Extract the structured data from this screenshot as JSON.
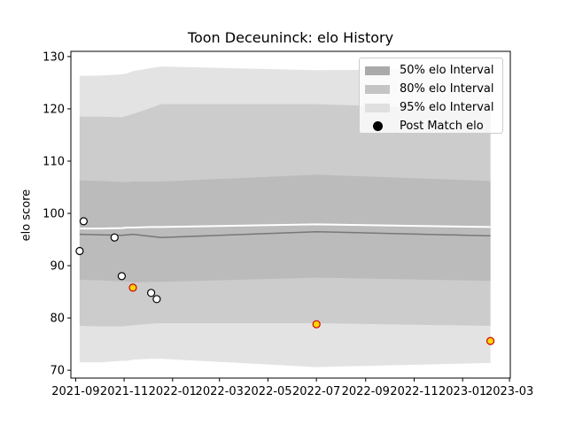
{
  "chart_data": {
    "type": "line",
    "title": "Toon Deceuninck: elo History",
    "xlabel": "",
    "ylabel": "elo score",
    "ylim": [
      68.5,
      131
    ],
    "xlim": [
      "2021-08-26",
      "2023-03-02"
    ],
    "x_ticks": [
      "2021-09",
      "2021-11",
      "2022-01",
      "2022-03",
      "2022-05",
      "2022-07",
      "2022-09",
      "2022-11",
      "2023-01",
      "2023-03"
    ],
    "y_ticks": [
      70,
      80,
      90,
      100,
      110,
      120,
      130
    ],
    "legend": {
      "placement": "top-right",
      "items": [
        {
          "label": "50% elo Interval",
          "kind": "band"
        },
        {
          "label": "80% elo Interval",
          "kind": "band"
        },
        {
          "label": "95% elo Interval",
          "kind": "band"
        },
        {
          "label": "Post Match elo",
          "kind": "marker"
        }
      ]
    },
    "band_dates": [
      "2021-09-06",
      "2021-10-03",
      "2021-10-29",
      "2021-11-05",
      "2021-11-12",
      "2021-12-05",
      "2021-12-18",
      "2022-07-01",
      "2023-02-05"
    ],
    "mean": [
      97.1,
      97.1,
      97.2,
      97.3,
      97.3,
      97.4,
      97.4,
      97.9,
      97.4
    ],
    "median": [
      96.0,
      95.9,
      95.8,
      95.9,
      96.0,
      95.6,
      95.4,
      96.5,
      95.7
    ],
    "bands": [
      {
        "name": "95% elo Interval",
        "color": "#e3e3e3",
        "lower": [
          71.5,
          71.5,
          71.8,
          71.8,
          72.0,
          72.2,
          72.2,
          70.6,
          71.4
        ],
        "upper": [
          126.3,
          126.4,
          126.6,
          126.8,
          127.2,
          127.8,
          128.1,
          127.4,
          127.7
        ]
      },
      {
        "name": "80% elo Interval",
        "color": "#cccccc",
        "lower": [
          78.5,
          78.4,
          78.4,
          78.5,
          78.6,
          78.9,
          79.0,
          79.0,
          78.5
        ],
        "upper": [
          118.5,
          118.5,
          118.4,
          118.7,
          119.0,
          120.2,
          120.9,
          120.9,
          119.8
        ]
      },
      {
        "name": "50% elo Interval",
        "color": "#bbbbbb",
        "lower": [
          87.3,
          87.2,
          87.0,
          87.0,
          86.8,
          86.9,
          86.9,
          87.7,
          87.1
        ],
        "upper": [
          106.3,
          106.2,
          106.0,
          106.0,
          106.1,
          106.1,
          106.1,
          107.4,
          106.2
        ]
      }
    ],
    "post_match_elo": [
      {
        "date": "2021-09-06",
        "elo": 92.8,
        "highlight": false
      },
      {
        "date": "2021-09-11",
        "elo": 98.5,
        "highlight": false
      },
      {
        "date": "2021-10-20",
        "elo": 95.4,
        "highlight": false
      },
      {
        "date": "2021-10-29",
        "elo": 88.0,
        "highlight": false
      },
      {
        "date": "2021-11-12",
        "elo": 85.8,
        "highlight": true
      },
      {
        "date": "2021-12-05",
        "elo": 84.8,
        "highlight": false
      },
      {
        "date": "2021-12-12",
        "elo": 83.6,
        "highlight": false
      },
      {
        "date": "2022-07-01",
        "elo": 78.8,
        "highlight": true
      },
      {
        "date": "2023-02-05",
        "elo": 75.6,
        "highlight": true
      }
    ],
    "colors": {
      "band95": "#e3e3e3",
      "band80": "#cccccc",
      "band50": "#bbbbbb",
      "mean_line": "#ffffff",
      "median_line": "#777777",
      "marker_fill": "#ffffff",
      "marker_edge": "#000000",
      "highlight_fill": "#ffd700",
      "highlight_edge": "#d00000"
    }
  }
}
